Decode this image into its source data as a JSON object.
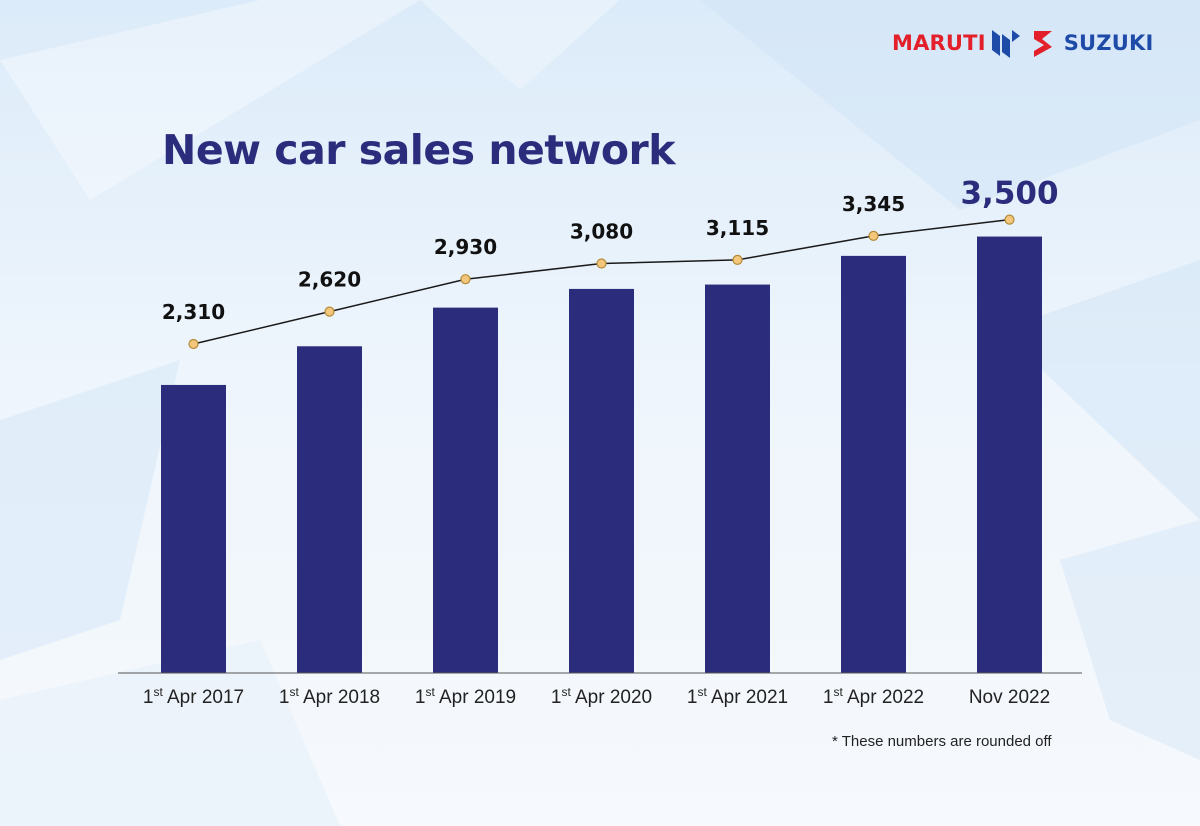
{
  "brand": {
    "left_word": "MARUTI",
    "right_word": "SUZUKI",
    "mark_icon": "suzuki-s-logo-icon",
    "colors": {
      "red": "#e3202a",
      "blue": "#1e4aa8"
    }
  },
  "footnote": "* These numbers are rounded off",
  "chart_data": {
    "type": "bar",
    "title": "New car sales network",
    "xlabel": "",
    "ylabel": "",
    "ylim": [
      0,
      3700
    ],
    "grid": false,
    "categories": [
      {
        "prefix": "1",
        "sup": "st",
        "suffix": " Apr 2017"
      },
      {
        "prefix": "1",
        "sup": "st",
        "suffix": " Apr 2018"
      },
      {
        "prefix": "1",
        "sup": "st",
        "suffix": " Apr 2019"
      },
      {
        "prefix": "1",
        "sup": "st",
        "suffix": " Apr 2020"
      },
      {
        "prefix": "1",
        "sup": "st",
        "suffix": " Apr 2021"
      },
      {
        "prefix": "1",
        "sup": "st",
        "suffix": " Apr 2022"
      },
      {
        "prefix": "Nov 2022",
        "sup": "",
        "suffix": ""
      }
    ],
    "values": [
      2310,
      2620,
      2930,
      3080,
      3115,
      3345,
      3500
    ],
    "labels": [
      "2,310",
      "2,620",
      "2,930",
      "3,080",
      "3,115",
      "3,345",
      "3,500"
    ],
    "overlay": "line-with-markers",
    "colors": {
      "bar": "#2b2c7c",
      "line": "#1a1a1a",
      "marker": "#f2c77b",
      "marker_stroke": "#b48a3a"
    }
  }
}
